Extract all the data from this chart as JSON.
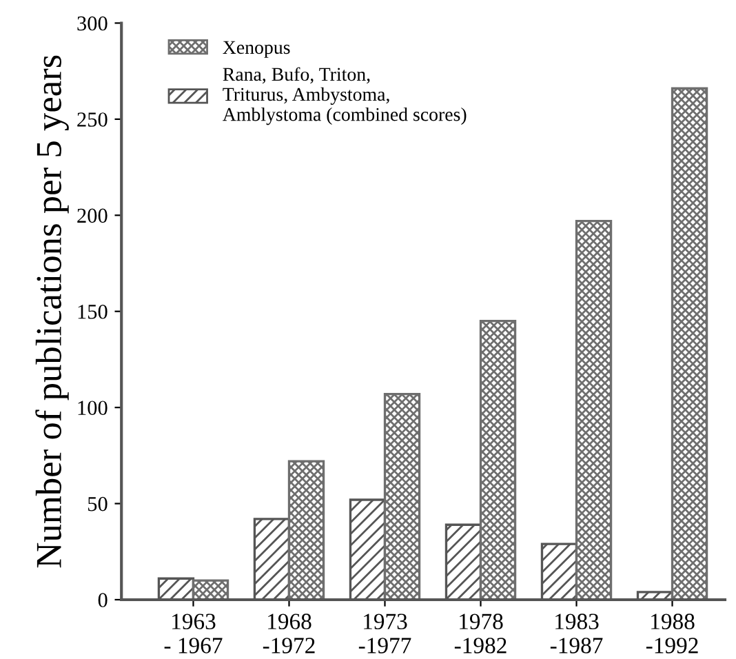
{
  "chart_data": {
    "type": "bar",
    "ylabel": "Number of publications per 5 years",
    "categories": [
      "1963\n- 1967",
      "1968\n-1972",
      "1973\n-1977",
      "1978\n-1982",
      "1983\n-1987",
      "1988\n-1992"
    ],
    "series": [
      {
        "name": "Rana, Bufo, Triton,\nTriturus, Ambystoma,\nAmblystoma (combined scores)",
        "color": "#555555",
        "values": [
          11,
          42,
          52,
          39,
          29,
          4
        ]
      },
      {
        "name": "Xenopus",
        "color": "#6e6e6e",
        "values": [
          10,
          72,
          107,
          145,
          197,
          266
        ]
      }
    ],
    "ylim": [
      0,
      300
    ],
    "yticks": [
      0,
      50,
      100,
      150,
      200,
      250,
      300
    ],
    "grid": false,
    "legend": "top left"
  }
}
